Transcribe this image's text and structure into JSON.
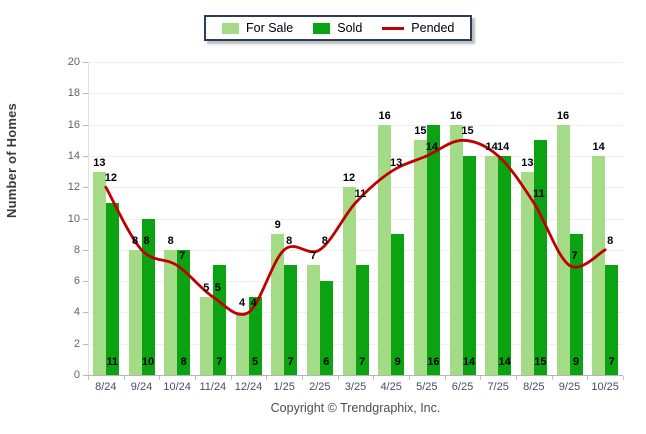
{
  "legend": {
    "items": [
      {
        "label": "For Sale",
        "color": "#A3DB86",
        "swatch": "rect"
      },
      {
        "label": "Sold",
        "color": "#0BA312",
        "swatch": "rect"
      },
      {
        "label": "Pended",
        "color": "#C00000",
        "swatch": "line"
      }
    ]
  },
  "footer": {
    "text": "Copyright © Trendgraphix, Inc."
  },
  "chart_data": {
    "type": "bar",
    "title": "",
    "categories": [
      "8/24",
      "9/24",
      "10/24",
      "11/24",
      "12/24",
      "1/25",
      "2/25",
      "3/25",
      "4/25",
      "5/25",
      "6/25",
      "7/25",
      "8/25",
      "9/25",
      "10/25"
    ],
    "series": [
      {
        "name": "For Sale",
        "type": "bar",
        "color": "#A3DB86",
        "values": [
          13,
          8,
          8,
          5,
          4,
          9,
          7,
          12,
          16,
          15,
          16,
          14,
          13,
          16,
          14
        ]
      },
      {
        "name": "Sold",
        "type": "bar",
        "color": "#0BA312",
        "values": [
          11,
          10,
          8,
          7,
          5,
          7,
          6,
          7,
          9,
          16,
          14,
          14,
          15,
          9,
          7
        ]
      },
      {
        "name": "Pended",
        "type": "line",
        "color": "#C00000",
        "values": [
          12,
          8,
          7,
          5,
          4,
          8,
          8,
          11,
          13,
          14,
          15,
          14,
          11,
          7,
          8
        ]
      }
    ],
    "xlabel": "",
    "ylabel": "Number of Homes",
    "ylim": [
      0,
      20
    ],
    "ytick_step": 2,
    "grid": true,
    "legend_position": "top-center",
    "value_labels": {
      "for_sale": "above light bar",
      "pended": "beside line point",
      "sold": "inside bottom of dark bar"
    }
  }
}
